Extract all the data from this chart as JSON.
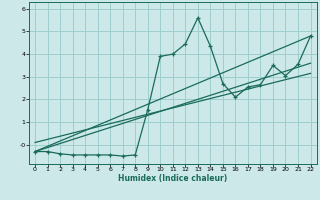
{
  "xlabel": "Humidex (Indice chaleur)",
  "bg_color": "#cce8e8",
  "grid_color": "#9ecece",
  "line_color": "#1a6b5a",
  "x_data": [
    0,
    1,
    2,
    3,
    4,
    5,
    6,
    7,
    8,
    9,
    10,
    11,
    12,
    13,
    14,
    15,
    16,
    17,
    18,
    19,
    20,
    21,
    22
  ],
  "y_data": [
    -0.3,
    -0.3,
    -0.4,
    -0.45,
    -0.45,
    -0.45,
    -0.45,
    -0.5,
    -0.45,
    1.55,
    3.9,
    4.0,
    4.45,
    5.6,
    4.35,
    2.7,
    2.1,
    2.55,
    2.65,
    3.5,
    3.05,
    3.55,
    4.8
  ],
  "xlim": [
    -0.5,
    22.5
  ],
  "ylim": [
    -0.85,
    6.3
  ],
  "yticks": [
    0,
    1,
    2,
    3,
    4,
    5,
    6
  ],
  "ytick_labels": [
    "-0",
    "1",
    "2",
    "3",
    "4",
    "5",
    "6"
  ],
  "xticks": [
    0,
    1,
    2,
    3,
    4,
    5,
    6,
    7,
    8,
    9,
    10,
    11,
    12,
    13,
    14,
    15,
    16,
    17,
    18,
    19,
    20,
    21,
    22
  ],
  "reg_line1": [
    [
      0,
      22
    ],
    [
      -0.3,
      4.8
    ]
  ],
  "reg_line2": [
    [
      0,
      22
    ],
    [
      -0.3,
      3.6
    ]
  ],
  "reg_line3": [
    [
      0,
      22
    ],
    [
      0.1,
      3.15
    ]
  ]
}
